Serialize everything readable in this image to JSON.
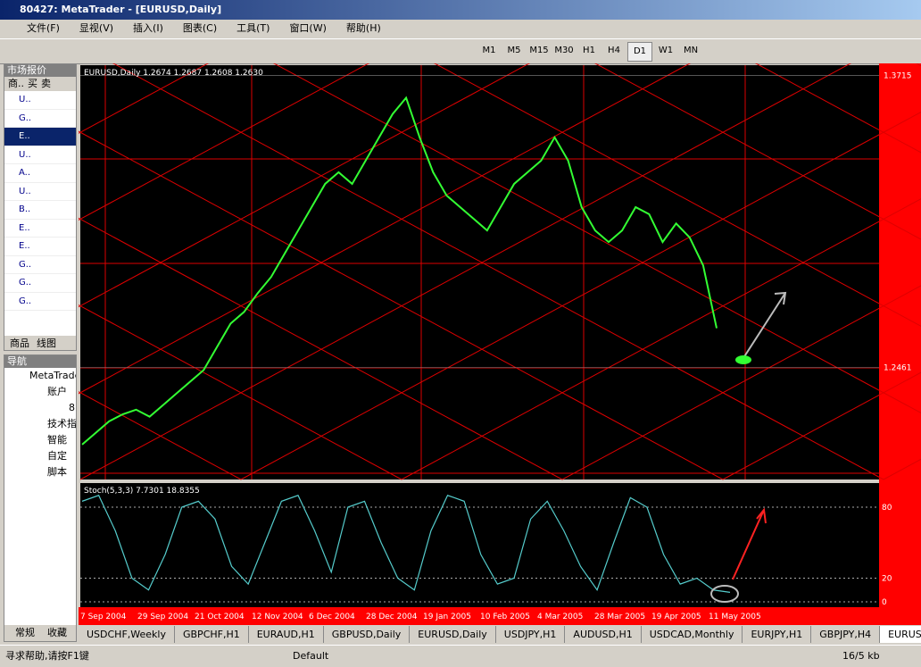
{
  "window": {
    "title": "80427: MetaTrader - [EURUSD,Daily]"
  },
  "menu": [
    "文件(F)",
    "显视(V)",
    "插入(I)",
    "图表(C)",
    "工具(T)",
    "窗口(W)",
    "帮助(H)"
  ],
  "toolbar": {
    "timeframes": [
      "M1",
      "M5",
      "M15",
      "M30",
      "H1",
      "H4",
      "D1",
      "W1",
      "MN"
    ]
  },
  "market_watch": {
    "title": "市场报价",
    "columns": [
      "商..",
      "买",
      "卖"
    ],
    "rows": [
      "U..",
      "G..",
      "E..",
      "U..",
      "A..",
      "U..",
      "B..",
      "E..",
      "E..",
      "G..",
      "G..",
      "G.."
    ],
    "tabs": [
      "商品",
      "线图"
    ]
  },
  "navigator": {
    "title": "导航",
    "items": [
      "MetaTrader",
      "账户",
      "8",
      "技术指",
      "智能",
      "自定",
      "脚本"
    ],
    "tabs": [
      "常规",
      "收藏"
    ]
  },
  "chart": {
    "header": "EURUSD,Daily  1.2674 1.2687 1.2608 1.2630",
    "price_labels": [
      1.3715,
      1.2461
    ],
    "ylim": [
      1.198,
      1.376
    ],
    "closes": [
      1.213,
      1.218,
      1.223,
      1.226,
      1.228,
      1.225,
      1.23,
      1.235,
      1.24,
      1.245,
      1.255,
      1.265,
      1.27,
      1.278,
      1.285,
      1.295,
      1.305,
      1.315,
      1.325,
      1.33,
      1.325,
      1.335,
      1.345,
      1.355,
      1.362,
      1.345,
      1.33,
      1.32,
      1.315,
      1.31,
      1.305,
      1.315,
      1.325,
      1.33,
      1.335,
      1.345,
      1.335,
      1.315,
      1.305,
      1.3,
      1.305,
      1.315,
      1.312,
      1.3,
      1.308,
      1.302,
      1.29,
      1.263
    ],
    "dates": [
      "7 Sep 2004",
      "29 Sep 2004",
      "21 Oct 2004",
      "12 Nov 2004",
      "6 Dec 2004",
      "28 Dec 2004",
      "19 Jan 2005",
      "10 Feb 2005",
      "4 Mar 2005",
      "28 Mar 2005",
      "19 Apr 2005",
      "11 May 2005"
    ]
  },
  "stoch": {
    "header": "Stoch(5,3,3) 7.7301 18.8355",
    "ylim": [
      0,
      100
    ],
    "levels": [
      80,
      20,
      0
    ],
    "values": [
      85,
      90,
      60,
      20,
      10,
      40,
      80,
      85,
      70,
      30,
      15,
      50,
      85,
      90,
      60,
      25,
      80,
      85,
      50,
      20,
      10,
      60,
      90,
      85,
      40,
      15,
      20,
      70,
      85,
      60,
      30,
      10,
      50,
      88,
      80,
      40,
      15,
      20,
      10,
      8
    ]
  },
  "tabs": [
    "USDCHF,Weekly",
    "GBPCHF,H1",
    "EURAUD,H1",
    "GBPUSD,Daily",
    "EURUSD,Daily",
    "USDJPY,H1",
    "AUDUSD,H1",
    "USDCAD,Monthly",
    "EURJPY,H1",
    "GBPJPY,H4",
    "EURUSD,"
  ],
  "status": {
    "help": "寻求帮助,请按F1键",
    "profile": "Default",
    "traffic": "16/5 kb"
  }
}
